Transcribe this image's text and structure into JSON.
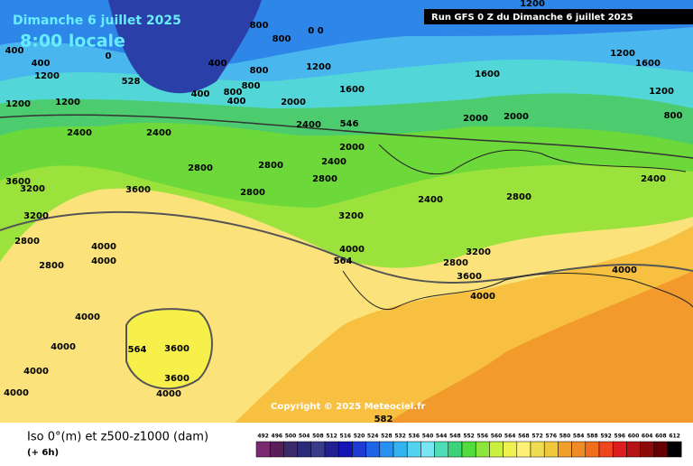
{
  "header": {
    "date": "Dimanche 6 juillet 2025",
    "time": "8:00 locale",
    "run": "Run GFS 0 Z du Dimanche 6 juillet 2025"
  },
  "map": {
    "copyright": "Copyright © 2025 Meteociel.fr",
    "labels": [
      "800",
      "800",
      "0 0",
      "400",
      "1200",
      "400",
      "0",
      "400",
      "800",
      "1200",
      "528",
      "400",
      "800",
      "800",
      "400",
      "2000",
      "1600",
      "1600",
      "1200",
      "2000",
      "2000",
      "800",
      "1200",
      "1200",
      "2400",
      "2400",
      "546",
      "2400",
      "2000",
      "2400",
      "2800",
      "2800",
      "2800",
      "3600",
      "3200",
      "3600",
      "2800",
      "2400",
      "2800",
      "2400",
      "3200",
      "3200",
      "4000",
      "4000",
      "2800",
      "2800",
      "4000",
      "564",
      "3200",
      "2800",
      "3600",
      "4000",
      "4000",
      "4000",
      "4000",
      "4000",
      "4000",
      "564",
      "3600",
      "3600",
      "4000",
      "582",
      "1200",
      "1600",
      "1200"
    ]
  },
  "legend": {
    "title": "Iso 0°(m) et z500-z1000 (dam)",
    "step": "(+ 6h)",
    "values": [
      492,
      496,
      500,
      504,
      508,
      512,
      516,
      520,
      524,
      528,
      532,
      536,
      540,
      544,
      548,
      552,
      556,
      560,
      564,
      568,
      572,
      576,
      580,
      584,
      588,
      592,
      596,
      600,
      604,
      608,
      612
    ],
    "colors": [
      "#7a2a70",
      "#5a1d5a",
      "#3c2a6a",
      "#2a2a7a",
      "#3a3a8a",
      "#202090",
      "#1414b4",
      "#1e3cd2",
      "#1e64e6",
      "#2890f0",
      "#32b4f0",
      "#50d2f0",
      "#78e6f0",
      "#50dcb4",
      "#3cd278",
      "#50dc3c",
      "#8ce63c",
      "#c8f03c",
      "#f0f050",
      "#fff078",
      "#f0dc50",
      "#f0c83c",
      "#f0a028",
      "#f08c28",
      "#f06e1e",
      "#f0461e",
      "#dc1e1e",
      "#b41414",
      "#8c0a0a",
      "#640000",
      "#000000"
    ]
  }
}
